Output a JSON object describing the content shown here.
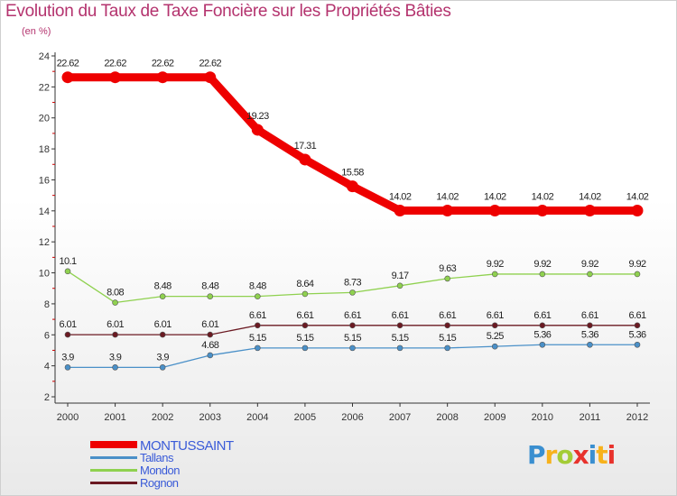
{
  "title": "Evolution du Taux de Taxe Foncière sur les Propriétés Bâties",
  "subtitle": "(en %)",
  "brand": {
    "text": "Proxiti",
    "colors": [
      "#3a8fd0",
      "#f7b21c",
      "#a3cc36",
      "#e8322c",
      "#3a8fd0",
      "#f7b21c",
      "#e8322c"
    ]
  },
  "chart_data": {
    "type": "line",
    "title": "Evolution du Taux de Taxe Foncière sur les Propriétés Bâties",
    "ylabel": "(en %)",
    "xlabel": "",
    "ylim": [
      2,
      24
    ],
    "yticks": [
      "2",
      "4",
      "6",
      "8",
      "10",
      "12",
      "14",
      "16",
      "18",
      "20",
      "22",
      "24"
    ],
    "categories": [
      "2000",
      "2001",
      "2002",
      "2003",
      "2004",
      "2005",
      "2006",
      "2007",
      "2008",
      "2009",
      "2010",
      "2011",
      "2012"
    ],
    "series": [
      {
        "name": "Tallans",
        "color": "#4a90c8",
        "values": [
          3.9,
          3.9,
          3.9,
          4.68,
          5.15,
          5.15,
          5.15,
          5.15,
          5.15,
          5.25,
          5.36,
          5.36,
          5.36
        ],
        "labels": [
          "3.9",
          "3.9",
          "3.9",
          "4.68",
          "5.15",
          "5.15",
          "5.15",
          "5.15",
          "5.15",
          "5.25",
          "5.36",
          "5.36",
          "5.36"
        ]
      },
      {
        "name": "Rognon",
        "color": "#6b1a22",
        "values": [
          6.01,
          6.01,
          6.01,
          6.01,
          6.61,
          6.61,
          6.61,
          6.61,
          6.61,
          6.61,
          6.61,
          6.61,
          6.61
        ],
        "labels": [
          "6.01",
          "6.01",
          "6.01",
          "6.01",
          "6.61",
          "6.61",
          "6.61",
          "6.61",
          "6.61",
          "6.61",
          "6.61",
          "6.61",
          "6.61"
        ]
      },
      {
        "name": "Mondon",
        "color": "#8fd14f",
        "values": [
          10.1,
          8.08,
          8.48,
          8.48,
          8.48,
          8.64,
          8.73,
          9.17,
          9.63,
          9.92,
          9.92,
          9.92,
          9.92
        ],
        "labels": [
          "10.1",
          "8.08",
          "8.48",
          "8.48",
          "8.48",
          "8.64",
          "8.73",
          "9.17",
          "9.63",
          "9.92",
          "9.92",
          "9.92",
          "9.92"
        ]
      },
      {
        "name": "MONTUSSAINT",
        "color": "#ee0000",
        "values": [
          22.62,
          22.62,
          22.62,
          22.62,
          19.23,
          17.31,
          15.58,
          14.02,
          14.02,
          14.02,
          14.02,
          14.02,
          14.02
        ],
        "labels": [
          "22.62",
          "22.62",
          "22.62",
          "22.62",
          "19.23",
          "17.31",
          "15.58",
          "14.02",
          "14.02",
          "14.02",
          "14.02",
          "14.02",
          "14.02"
        ]
      }
    ],
    "legend": [
      {
        "name": "MONTUSSAINT",
        "color": "#ee0000",
        "text_color": "#3a5bd8"
      },
      {
        "name": "Tallans",
        "color": "#4a90c8",
        "text_color": "#3a5bd8"
      },
      {
        "name": "Mondon",
        "color": "#8fd14f",
        "text_color": "#3a5bd8"
      },
      {
        "name": "Rognon",
        "color": "#6b1a22",
        "text_color": "#3a5bd8"
      }
    ],
    "legend_position": "bottom-left",
    "grid": false
  }
}
